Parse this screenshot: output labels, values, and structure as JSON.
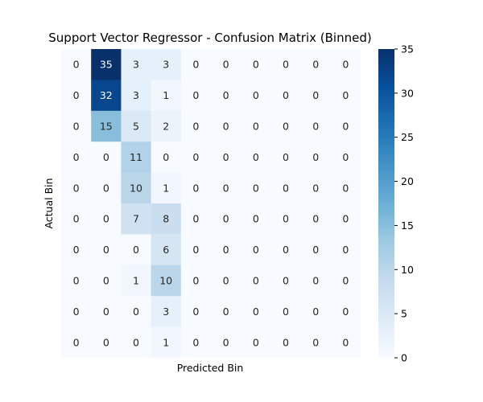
{
  "chart_data": {
    "type": "heatmap",
    "title": "Support Vector Regressor - Confusion Matrix (Binned)",
    "xlabel": "Predicted Bin",
    "ylabel": "Actual Bin",
    "matrix": [
      [
        0,
        35,
        3,
        3,
        0,
        0,
        0,
        0,
        0,
        0
      ],
      [
        0,
        32,
        3,
        1,
        0,
        0,
        0,
        0,
        0,
        0
      ],
      [
        0,
        15,
        5,
        2,
        0,
        0,
        0,
        0,
        0,
        0
      ],
      [
        0,
        0,
        11,
        0,
        0,
        0,
        0,
        0,
        0,
        0
      ],
      [
        0,
        0,
        10,
        1,
        0,
        0,
        0,
        0,
        0,
        0
      ],
      [
        0,
        0,
        7,
        8,
        0,
        0,
        0,
        0,
        0,
        0
      ],
      [
        0,
        0,
        0,
        6,
        0,
        0,
        0,
        0,
        0,
        0
      ],
      [
        0,
        0,
        1,
        10,
        0,
        0,
        0,
        0,
        0,
        0
      ],
      [
        0,
        0,
        0,
        3,
        0,
        0,
        0,
        0,
        0,
        0
      ],
      [
        0,
        0,
        0,
        1,
        0,
        0,
        0,
        0,
        0,
        0
      ]
    ],
    "colorbar": {
      "min": 0,
      "max": 35,
      "ticks": [
        0,
        5,
        10,
        15,
        20,
        25,
        30,
        35
      ]
    },
    "colormap": "Blues",
    "colors": {
      "low": "#f7fbff",
      "high": "#08306b",
      "text_dark": "#262626",
      "text_light": "#ffffff"
    }
  }
}
